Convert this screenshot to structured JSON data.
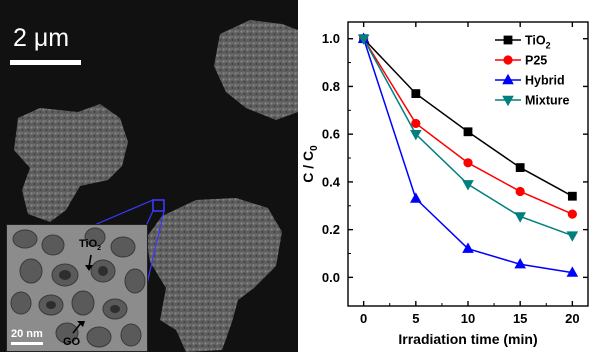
{
  "micrograph": {
    "scale_label": "2 μm",
    "inset": {
      "label_tio2_main": "TiO",
      "label_tio2_sub": "2",
      "label_go": "GO",
      "scale_label": "20 nm"
    }
  },
  "chart_data": {
    "type": "line",
    "title": "",
    "xlabel": "Irradiation time (min)",
    "ylabel_main": "C / C",
    "ylabel_sub": "0",
    "x": [
      0,
      5,
      10,
      15,
      20
    ],
    "xlim": [
      -1.5,
      21.5
    ],
    "ylim": [
      -0.12,
      1.07
    ],
    "xticks": [
      0,
      5,
      10,
      15,
      20
    ],
    "yticks": [
      0.0,
      0.2,
      0.4,
      0.6,
      0.8,
      1.0
    ],
    "ytick_labels": [
      "0.0",
      "0.2",
      "0.4",
      "0.6",
      "0.8",
      "1.0"
    ],
    "grid": false,
    "legend_position": "top-right",
    "series": [
      {
        "name": "TiO",
        "name_sub": "2",
        "marker": "square",
        "color": "#000000",
        "values": [
          1.0,
          0.77,
          0.61,
          0.46,
          0.34
        ]
      },
      {
        "name": "P25",
        "name_sub": "",
        "marker": "circle",
        "color": "#ff0000",
        "values": [
          1.0,
          0.645,
          0.48,
          0.36,
          0.265
        ]
      },
      {
        "name": "Hybrid",
        "name_sub": "",
        "marker": "triangle-up",
        "color": "#0000ff",
        "values": [
          1.0,
          0.33,
          0.12,
          0.055,
          0.02
        ]
      },
      {
        "name": "Mixture",
        "name_sub": "",
        "marker": "triangle-down",
        "color": "#007f7f",
        "values": [
          1.0,
          0.6,
          0.39,
          0.255,
          0.175
        ]
      }
    ]
  }
}
